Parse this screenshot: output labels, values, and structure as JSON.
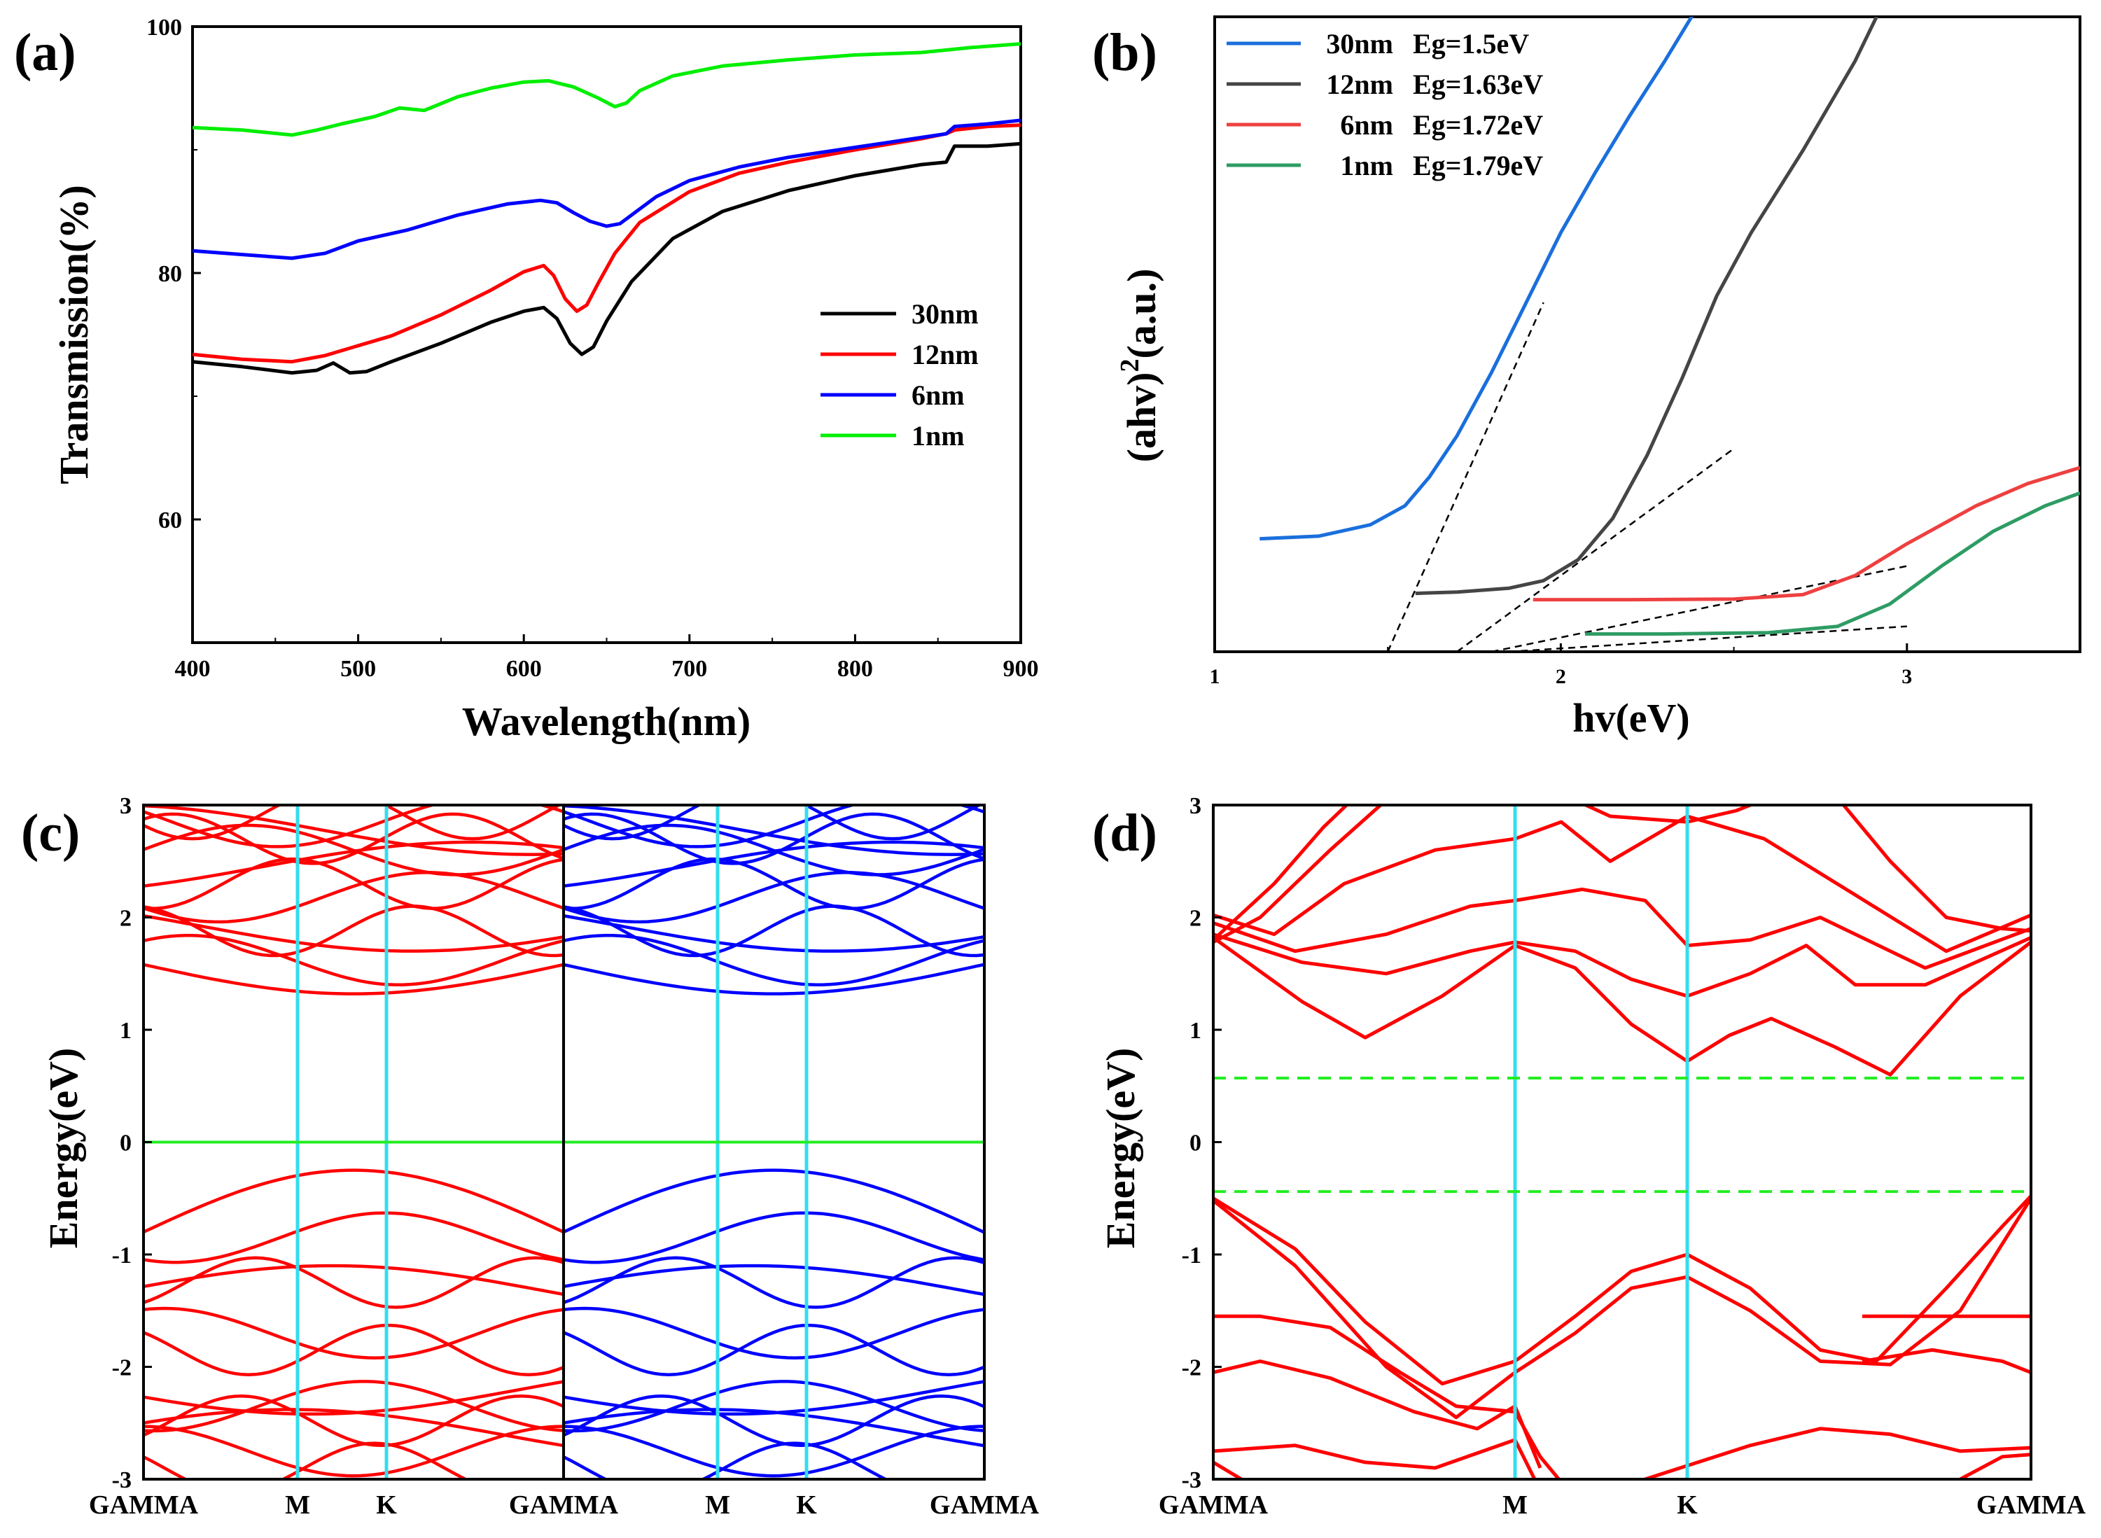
{
  "chart_data": [
    {
      "panel": "(a)",
      "type": "line",
      "xlabel": "Wavelength(nm)",
      "ylabel": "Transmission(%)",
      "xlim": [
        400,
        900
      ],
      "ylim": [
        50,
        100
      ],
      "xticks": [
        400,
        500,
        600,
        700,
        800,
        900
      ],
      "yticks": [
        60,
        80,
        100
      ],
      "legend_position": "center-right",
      "series": [
        {
          "name": "30nm",
          "color": "#000000",
          "x": [
            400,
            430,
            460,
            475,
            485,
            495,
            505,
            520,
            550,
            580,
            600,
            612,
            620,
            628,
            635,
            642,
            650,
            665,
            690,
            720,
            760,
            800,
            840,
            855,
            860,
            880,
            900
          ],
          "y": [
            72.8,
            72.4,
            71.9,
            72.1,
            72.7,
            71.9,
            72.0,
            72.8,
            74.3,
            76.0,
            76.9,
            77.2,
            76.3,
            74.3,
            73.4,
            74.0,
            76.1,
            79.3,
            82.8,
            85.0,
            86.7,
            87.9,
            88.8,
            89.0,
            90.3,
            90.3,
            90.5
          ]
        },
        {
          "name": "12nm",
          "color": "#ff0000",
          "x": [
            400,
            430,
            460,
            480,
            500,
            520,
            550,
            580,
            600,
            612,
            618,
            625,
            632,
            638,
            645,
            655,
            670,
            700,
            730,
            760,
            800,
            840,
            855,
            860,
            880,
            900
          ],
          "y": [
            73.4,
            73.0,
            72.8,
            73.3,
            74.1,
            74.9,
            76.6,
            78.6,
            80.1,
            80.6,
            79.8,
            77.9,
            76.9,
            77.4,
            79.2,
            81.6,
            84.1,
            86.6,
            88.1,
            89.0,
            90.0,
            90.9,
            91.3,
            91.6,
            91.9,
            92.0
          ]
        },
        {
          "name": "6nm",
          "color": "#0000ff",
          "x": [
            400,
            430,
            460,
            480,
            500,
            530,
            560,
            590,
            610,
            620,
            630,
            640,
            650,
            658,
            665,
            680,
            700,
            730,
            760,
            800,
            840,
            855,
            860,
            880,
            900
          ],
          "y": [
            81.8,
            81.5,
            81.2,
            81.6,
            82.6,
            83.5,
            84.7,
            85.6,
            85.9,
            85.7,
            84.9,
            84.2,
            83.8,
            84.0,
            84.7,
            86.2,
            87.5,
            88.6,
            89.4,
            90.2,
            91.0,
            91.3,
            91.9,
            92.1,
            92.4
          ]
        },
        {
          "name": "1nm",
          "color": "#00ee00",
          "x": [
            400,
            430,
            460,
            475,
            490,
            510,
            525,
            540,
            560,
            580,
            600,
            615,
            630,
            645,
            655,
            662,
            670,
            690,
            720,
            760,
            800,
            840,
            870,
            900
          ],
          "y": [
            91.8,
            91.6,
            91.2,
            91.6,
            92.1,
            92.7,
            93.4,
            93.2,
            94.3,
            95.0,
            95.5,
            95.6,
            95.1,
            94.2,
            93.5,
            93.8,
            94.8,
            96.0,
            96.8,
            97.3,
            97.7,
            97.9,
            98.3,
            98.6
          ]
        }
      ]
    },
    {
      "panel": "(b)",
      "type": "line",
      "xlabel": "hv(eV)",
      "ylabel": "(ahv)2(a.u.)",
      "xlim": [
        1,
        3.5
      ],
      "ylim": [
        0,
        10
      ],
      "xticks": [
        1,
        2,
        3
      ],
      "legend_position": "top-left",
      "series": [
        {
          "name": "30nm",
          "label": "Eg=1.5eV",
          "color": "#1a6fdc",
          "x": [
            1.13,
            1.3,
            1.45,
            1.55,
            1.62,
            1.7,
            1.8,
            1.9,
            2.0,
            2.1,
            2.2,
            2.3,
            2.4,
            2.47
          ],
          "y": [
            1.78,
            1.82,
            2.0,
            2.3,
            2.75,
            3.4,
            4.4,
            5.5,
            6.6,
            7.55,
            8.45,
            9.3,
            10.2,
            10.6
          ]
        },
        {
          "name": "12nm",
          "color": "#454545",
          "x": [
            1.58,
            1.7,
            1.85,
            1.95,
            2.05,
            2.15,
            2.25,
            2.35,
            2.45,
            2.55,
            2.7,
            2.85,
            2.93
          ],
          "y": [
            0.92,
            0.94,
            1.0,
            1.12,
            1.45,
            2.1,
            3.1,
            4.3,
            5.6,
            6.6,
            7.9,
            9.3,
            10.2
          ]
        },
        {
          "name": "6nm",
          "color": "#ee4040",
          "x": [
            1.92,
            2.2,
            2.5,
            2.7,
            2.85,
            3.0,
            3.2,
            3.35,
            3.5
          ],
          "y": [
            0.82,
            0.82,
            0.83,
            0.9,
            1.2,
            1.7,
            2.3,
            2.65,
            2.9
          ]
        },
        {
          "name": "1nm",
          "color": "#2e9c64",
          "x": [
            2.07,
            2.3,
            2.6,
            2.8,
            2.95,
            3.1,
            3.25,
            3.4,
            3.5
          ],
          "y": [
            0.28,
            0.28,
            0.3,
            0.4,
            0.75,
            1.35,
            1.9,
            2.3,
            2.5
          ]
        }
      ],
      "tangent_lines": [
        {
          "x": [
            1.5,
            1.95
          ],
          "y": [
            0.0,
            5.5
          ]
        },
        {
          "x": [
            1.7,
            2.5
          ],
          "y": [
            0.0,
            3.2
          ]
        },
        {
          "x": [
            1.8,
            3.0
          ],
          "y": [
            0.0,
            1.35
          ]
        },
        {
          "x": [
            1.85,
            3.0
          ],
          "y": [
            0.0,
            0.4
          ]
        }
      ]
    },
    {
      "panel": "(c)",
      "type": "line",
      "xlabel": "",
      "ylabel": "Energy(eV)",
      "ylim": [
        -3,
        3
      ],
      "yticks": [
        -3,
        -2,
        -1,
        0,
        1,
        2,
        3
      ],
      "high_symmetry_points": [
        "GAMMA",
        "M",
        "K",
        "GAMMA",
        "M",
        "K",
        "GAMMA"
      ],
      "fermi_level": 0,
      "conduction_band_min_eV": 1.32,
      "valence_band_max_eV": -0.26,
      "band_color_left": "#ff0000",
      "band_color_right": "#0000ff"
    },
    {
      "panel": "(d)",
      "type": "line",
      "xlabel": "",
      "ylabel": "Energy(eV)",
      "ylim": [
        -3,
        3
      ],
      "yticks": [
        -3,
        -2,
        -1,
        0,
        1,
        2,
        3
      ],
      "high_symmetry_points": [
        "GAMMA",
        "M",
        "K",
        "GAMMA"
      ],
      "gap_lines_eV": [
        0.57,
        -0.44
      ],
      "conduction_band_min_eV": 0.57,
      "valence_band_max_eV": -0.44,
      "band_color": "#ff0000"
    }
  ],
  "panels": {
    "a": {
      "label": "(a)"
    },
    "b": {
      "label": "(b)"
    },
    "c": {
      "label": "(c)"
    },
    "d": {
      "label": "(d)"
    }
  }
}
